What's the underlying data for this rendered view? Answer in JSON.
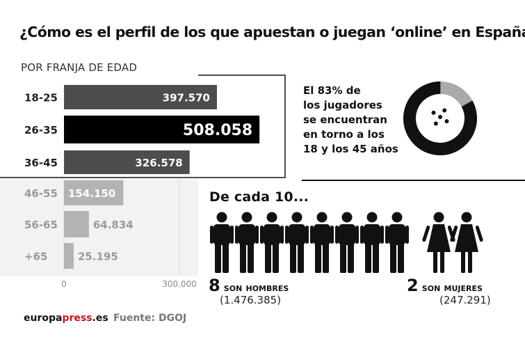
{
  "title": "¿Cómo es el perfil de los que apuestan o juegan ‘online’ en España?",
  "subtitle": "POR FRANJA DE EDAD",
  "chart_data": {
    "type": "bar",
    "orientation": "horizontal",
    "categories": [
      "18-25",
      "26-35",
      "36-45",
      "46-55",
      "56-65",
      "+65"
    ],
    "values": [
      397570,
      508058,
      326578,
      154150,
      64834,
      25195
    ],
    "value_labels": [
      "397.570",
      "508.058",
      "326.578",
      "154.150",
      "64.834",
      "25.195"
    ],
    "xlim": [
      0,
      600000
    ],
    "x_ticks": [
      0,
      300000
    ],
    "x_tick_labels": [
      "0",
      "300.000"
    ],
    "highlight_groups": [
      "18-25",
      "26-35",
      "36-45"
    ],
    "colors": {
      "highlight": "#4d4d4d",
      "max": "#000000",
      "rest": "#b3b3b3",
      "rest_label": "#9a9a9a"
    }
  },
  "callout": {
    "lines": [
      "El 83% de",
      "los jugadores",
      "se encuentran",
      "en torno a los",
      "18 y los 45 años"
    ],
    "donut_percent": 83,
    "icon": "dice-icon"
  },
  "gender": {
    "heading": "De cada 10...",
    "men_count": "8",
    "men_label": "son hombres",
    "men_total": "(1.476.385)",
    "women_count": "2",
    "women_label": "son mujeres",
    "women_total": "(247.291)",
    "men_icons": 8,
    "women_icons": 2
  },
  "footer": {
    "brand_part1": "europa",
    "brand_part2": "press",
    "brand_part3": ".es",
    "source": "Fuente: DGOJ"
  }
}
